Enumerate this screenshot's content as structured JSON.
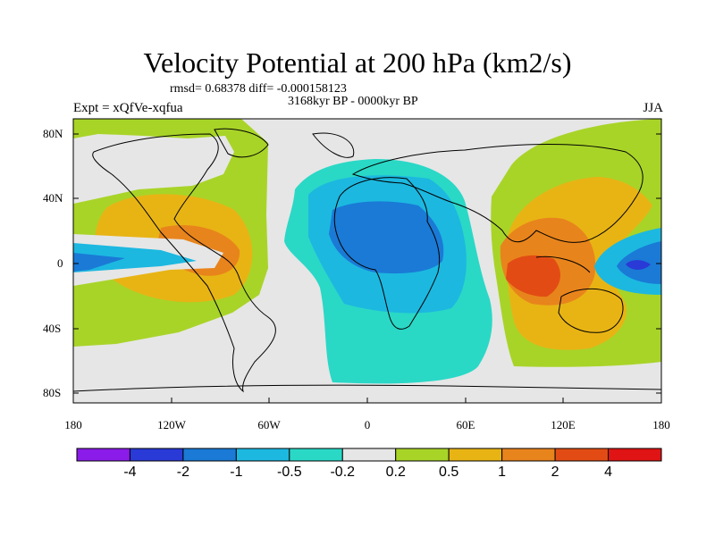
{
  "title": "Velocity Potential at 200 hPa (km2/s)",
  "stats": "rmsd= 0.68378 diff= -0.000158123",
  "period": "3168kyr BP - 0000kyr BP",
  "experiment": "Expt = xQfVe-xqfua",
  "season": "JJA",
  "lat_labels": [
    "80N",
    "40N",
    "0",
    "40S",
    "80S"
  ],
  "lon_labels": [
    "180",
    "120W",
    "60W",
    "0",
    "60E",
    "120E",
    "180"
  ],
  "colorbar": {
    "colors": [
      "#8a1be8",
      "#2a3ad6",
      "#1a7ad6",
      "#1cb8e0",
      "#2ad8c6",
      "#e6e6e6",
      "#a8d428",
      "#e8b414",
      "#e8841c",
      "#e24c14",
      "#e01414"
    ],
    "labels": [
      "-4",
      "-2",
      "-1",
      "-0.5",
      "-0.2",
      "0.2",
      "0.5",
      "1",
      "2",
      "4"
    ]
  }
}
